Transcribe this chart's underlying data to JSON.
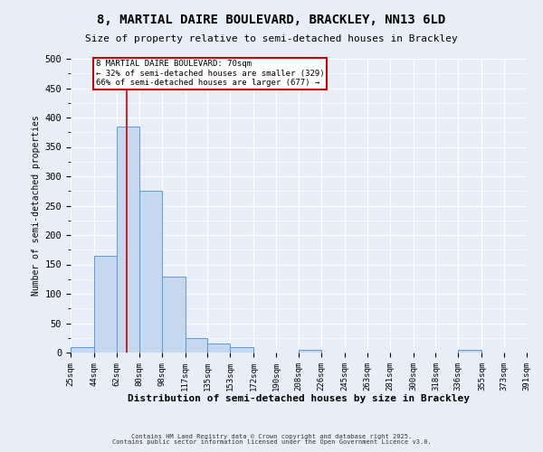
{
  "title": "8, MARTIAL DAIRE BOULEVARD, BRACKLEY, NN13 6LD",
  "subtitle": "Size of property relative to semi-detached houses in Brackley",
  "xlabel": "Distribution of semi-detached houses by size in Brackley",
  "ylabel": "Number of semi-detached properties",
  "bins": [
    25,
    44,
    62,
    80,
    98,
    117,
    135,
    153,
    172,
    190,
    208,
    226,
    245,
    263,
    281,
    300,
    318,
    336,
    355,
    373,
    391
  ],
  "bar_heights": [
    10,
    165,
    385,
    275,
    130,
    25,
    15,
    10,
    0,
    0,
    5,
    0,
    0,
    0,
    0,
    0,
    0,
    5,
    0,
    0
  ],
  "bar_color": "#c5d8f0",
  "bar_edge_color": "#5b9bd5",
  "property_size": 70,
  "red_line_color": "#cc0000",
  "annotation_text": "8 MARTIAL DAIRE BOULEVARD: 70sqm\n← 32% of semi-detached houses are smaller (329)\n66% of semi-detached houses are larger (677) →",
  "annotation_box_color": "#ffffff",
  "annotation_box_edge": "#cc0000",
  "ylim": [
    0,
    500
  ],
  "yticks": [
    0,
    50,
    100,
    150,
    200,
    250,
    300,
    350,
    400,
    450,
    500
  ],
  "footer1": "Contains HM Land Registry data © Crown copyright and database right 2025.",
  "footer2": "Contains public sector information licensed under the Open Government Licence v3.0.",
  "background_color": "#e8eef8",
  "grid_color": "#ffffff"
}
